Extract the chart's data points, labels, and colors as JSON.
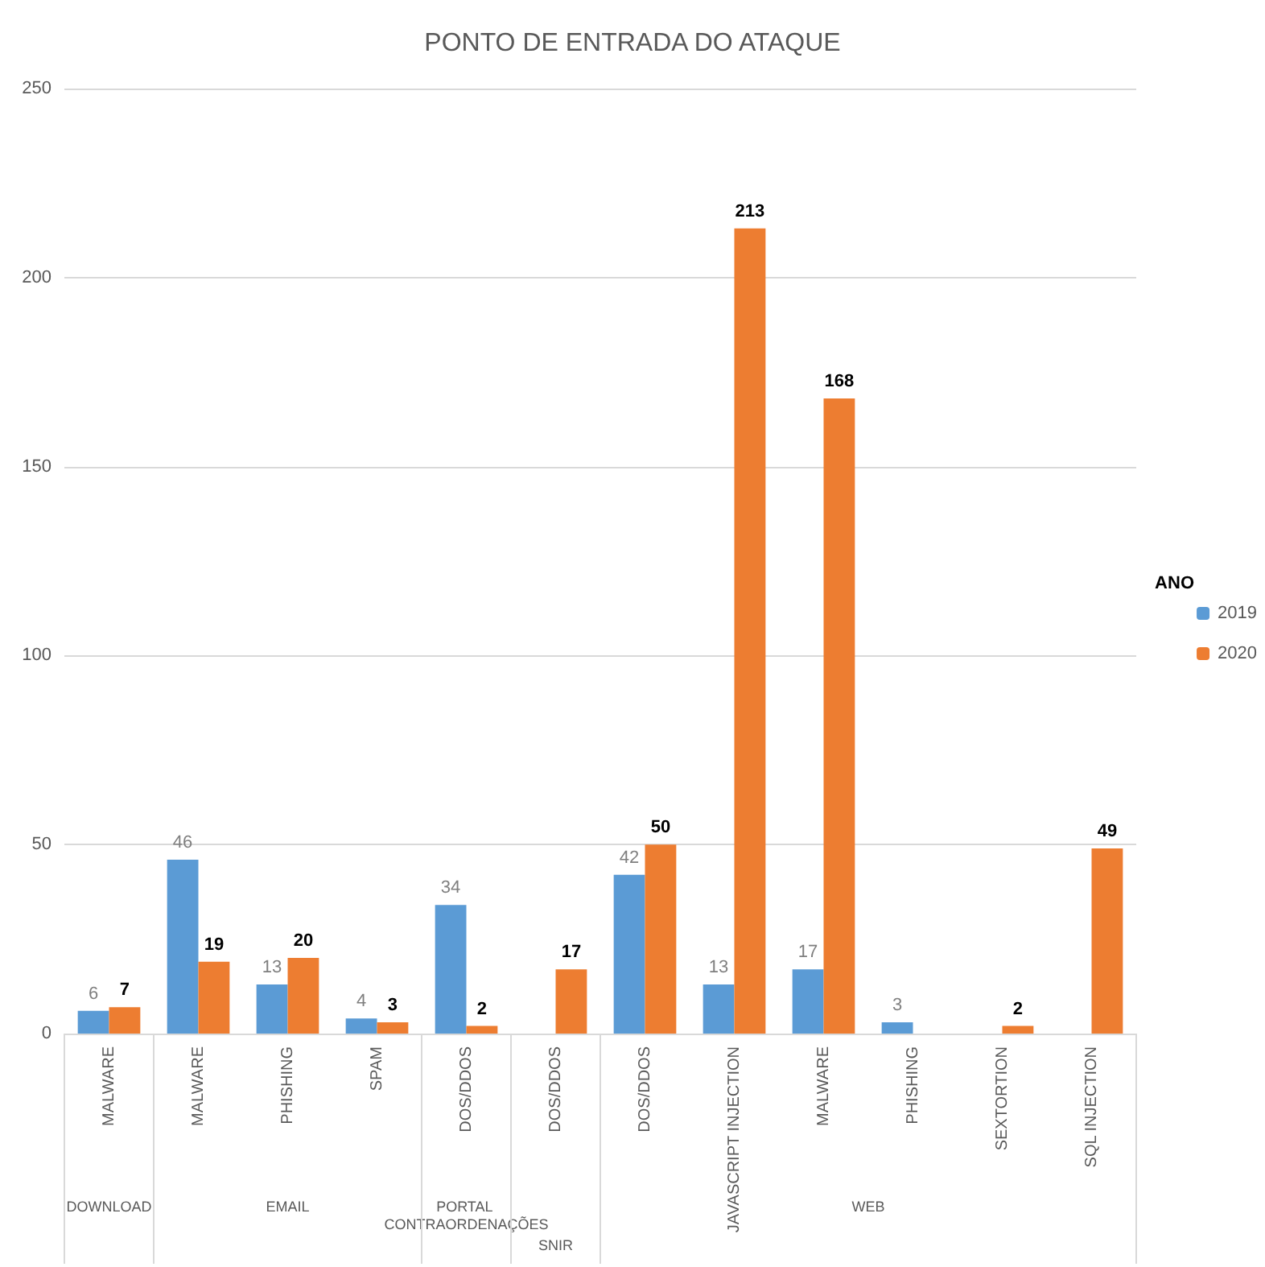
{
  "chart_data": {
    "type": "bar",
    "title": "PONTO DE ENTRADA DO ATAQUE",
    "categories": [
      "MALWARE",
      "MALWARE",
      "PHISHING",
      "SPAM",
      "DOS/DDOS",
      "DOS/DDOS",
      "DOS/DDOS",
      "JAVASCRIPT INJECTION",
      "MALWARE",
      "PHISHING",
      "SEXTORTION",
      "SQL INJECTION"
    ],
    "series": [
      {
        "name": "2019",
        "color": "#5b9bd5",
        "values": [
          6,
          46,
          13,
          4,
          34,
          null,
          42,
          13,
          17,
          3,
          null,
          null
        ]
      },
      {
        "name": "2020",
        "color": "#ed7d31",
        "values": [
          7,
          19,
          20,
          3,
          2,
          17,
          50,
          213,
          168,
          null,
          2,
          49
        ]
      }
    ],
    "annotations": [
      "DOWNLOAD",
      "EMAIL",
      "PORTAL CONTRAORDENAÇÕES",
      "SNIR",
      "WEB"
    ],
    "legend_title": "ANO",
    "ylim": [
      0,
      250
    ],
    "yticks": [
      0,
      50,
      100,
      150,
      200,
      250
    ],
    "grid": "y",
    "legend": "right",
    "data_labels": true
  }
}
